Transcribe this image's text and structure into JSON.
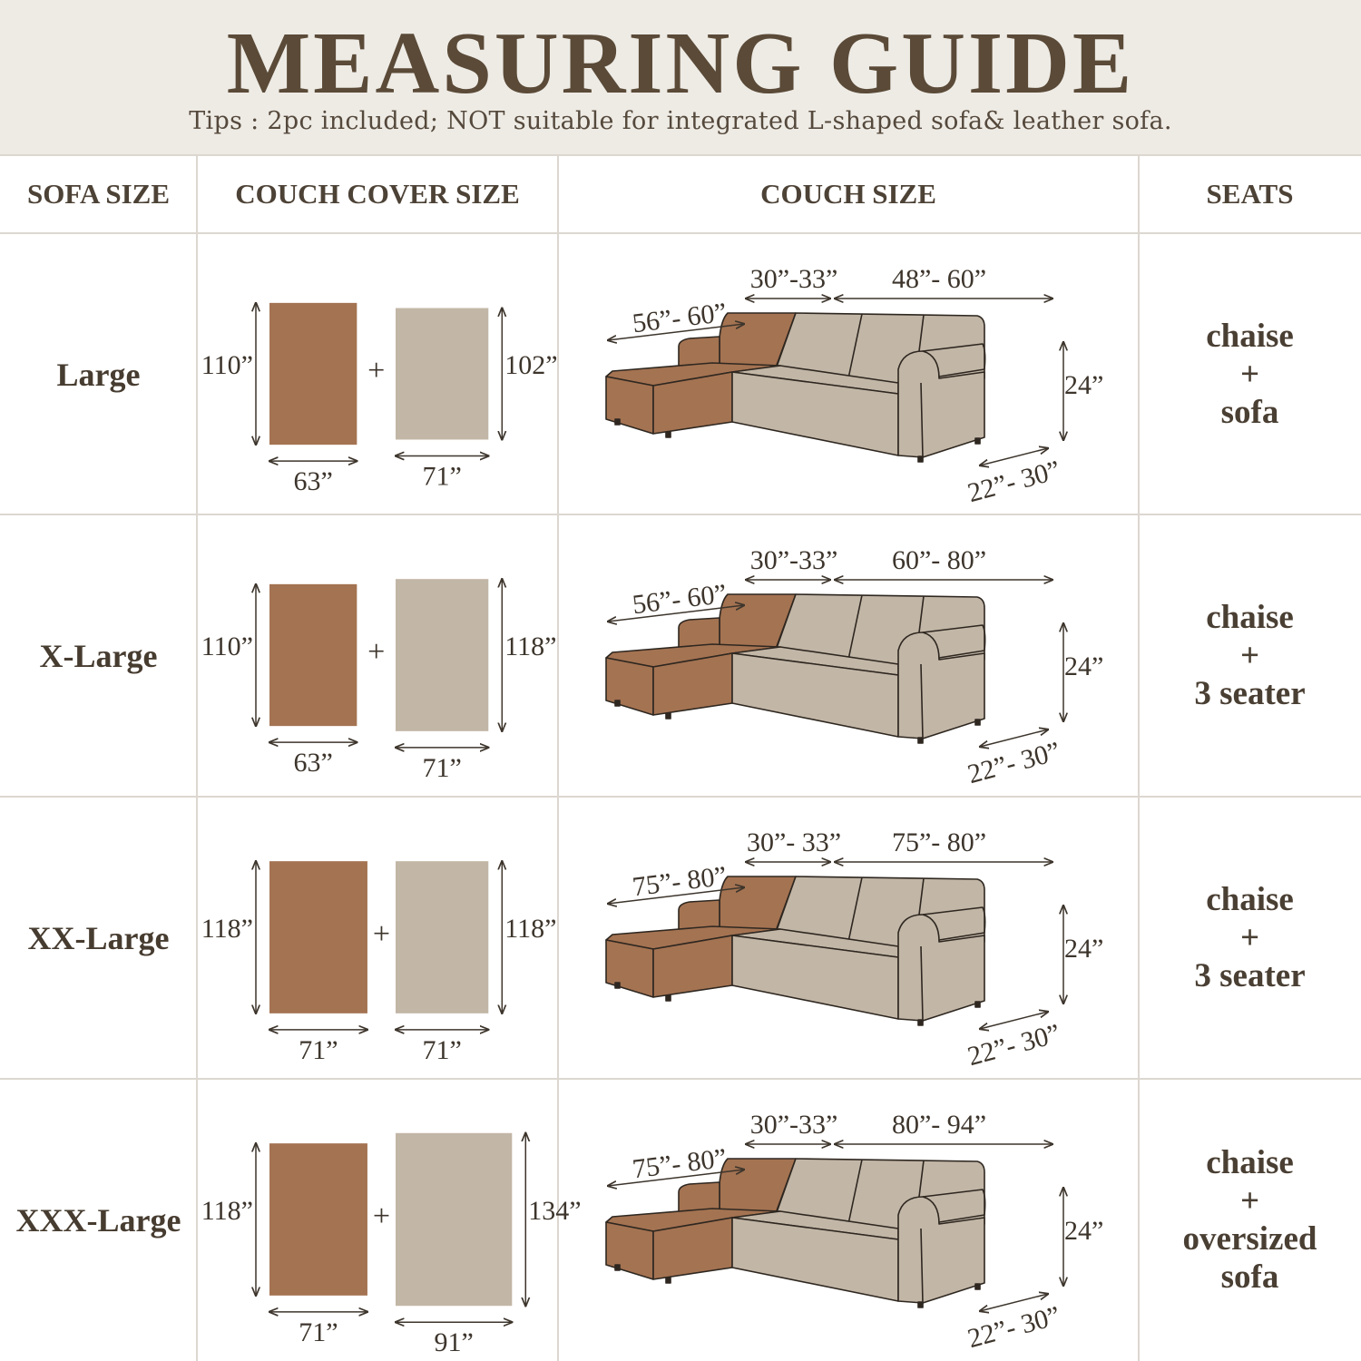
{
  "title": "MEASURING GUIDE",
  "tips": "Tips : 2pc included; NOT suitable for integrated L-shaped sofa& leather sofa.",
  "headers": [
    "SOFA SIZE",
    "COUCH COVER SIZE",
    "COUCH SIZE",
    "SEATS"
  ],
  "colors": {
    "chaise_cover": "#a47352",
    "sofa_cover": "#c2b6a6",
    "header_bg": "#eeebe5",
    "title": "#5a4a37"
  },
  "rows": [
    {
      "size": "Large",
      "chaise_cover": {
        "height": "110”",
        "width": "63”"
      },
      "sofa_cover": {
        "height": "102”",
        "width": "71”"
      },
      "couch": {
        "chaise_length": "56”- 60”",
        "chaise_width": "30”-33”",
        "sofa_length": "48”- 60”",
        "height": "24”",
        "depth": "22”- 30”"
      },
      "seats": [
        "chaise",
        "+",
        "sofa"
      ]
    },
    {
      "size": "X-Large",
      "chaise_cover": {
        "height": "110”",
        "width": "63”"
      },
      "sofa_cover": {
        "height": "118”",
        "width": "71”"
      },
      "couch": {
        "chaise_length": "56”- 60”",
        "chaise_width": "30”-33”",
        "sofa_length": "60”- 80”",
        "height": "24”",
        "depth": "22”- 30”"
      },
      "seats": [
        "chaise",
        "+",
        "3 seater"
      ]
    },
    {
      "size": "XX-Large",
      "chaise_cover": {
        "height": "118”",
        "width": "71”"
      },
      "sofa_cover": {
        "height": "118”",
        "width": "71”"
      },
      "couch": {
        "chaise_length": "75”- 80”",
        "chaise_width": "30”- 33”",
        "sofa_length": "75”- 80”",
        "height": "24”",
        "depth": "22”- 30”"
      },
      "seats": [
        "chaise",
        "+",
        "3 seater"
      ]
    },
    {
      "size": "XXX-Large",
      "chaise_cover": {
        "height": "118”",
        "width": "71”"
      },
      "sofa_cover": {
        "height": "134”",
        "width": "91”"
      },
      "couch": {
        "chaise_length": "75”- 80”",
        "chaise_width": "30”-33”",
        "sofa_length": "80”- 94”",
        "height": "24”",
        "depth": "22”- 30”"
      },
      "seats": [
        "chaise",
        "+",
        "oversized",
        "sofa"
      ]
    }
  ]
}
